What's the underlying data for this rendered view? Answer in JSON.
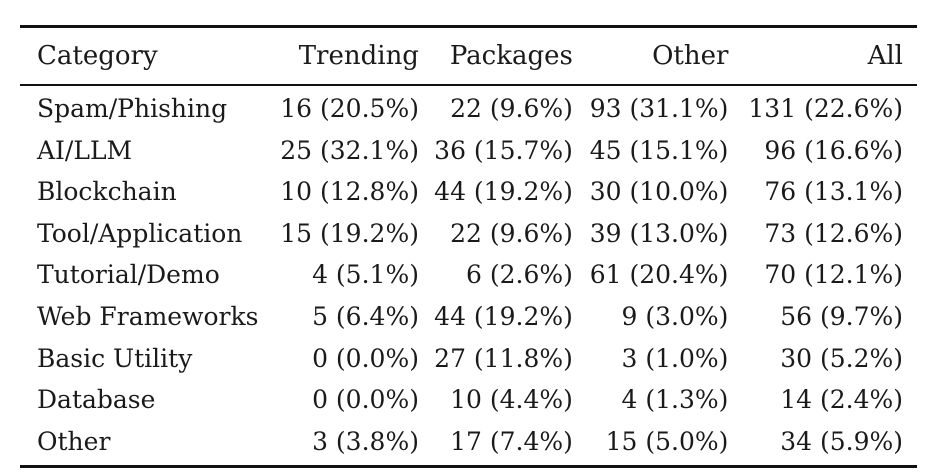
{
  "table": {
    "title": "category-distribution-table",
    "columns": [
      "Category",
      "Trending",
      "Packages",
      "Other",
      "All"
    ],
    "rows": [
      {
        "cells": [
          "Spam/Phishing",
          "16 (20.5%)",
          "22 (9.6%)",
          "93 (31.1%)",
          "131 (22.6%)"
        ]
      },
      {
        "cells": [
          "AI/LLM",
          "25 (32.1%)",
          "36 (15.7%)",
          "45 (15.1%)",
          "96 (16.6%)"
        ]
      },
      {
        "cells": [
          "Blockchain",
          "10 (12.8%)",
          "44 (19.2%)",
          "30 (10.0%)",
          "76 (13.1%)"
        ]
      },
      {
        "cells": [
          "Tool/Application",
          "15 (19.2%)",
          "22 (9.6%)",
          "39 (13.0%)",
          "73 (12.6%)"
        ]
      },
      {
        "cells": [
          "Tutorial/Demo",
          "4 (5.1%)",
          "6 (2.6%)",
          "61 (20.4%)",
          "70 (12.1%)"
        ]
      },
      {
        "cells": [
          "Web Frameworks",
          "5 (6.4%)",
          "44 (19.2%)",
          "9 (3.0%)",
          "56 (9.7%)"
        ]
      },
      {
        "cells": [
          "Basic Utility",
          "0 (0.0%)",
          "27 (11.8%)",
          "3 (1.0%)",
          "30 (5.2%)"
        ]
      },
      {
        "cells": [
          "Database",
          "0 (0.0%)",
          "10 (4.4%)",
          "4 (1.3%)",
          "14 (2.4%)"
        ]
      },
      {
        "cells": [
          "Other",
          "3 (3.8%)",
          "17 (7.4%)",
          "15 (5.0%)",
          "34 (5.9%)"
        ]
      }
    ]
  },
  "colors": {
    "background": "#ffffff",
    "text": "#1a1a1a",
    "rule": "#111111"
  }
}
